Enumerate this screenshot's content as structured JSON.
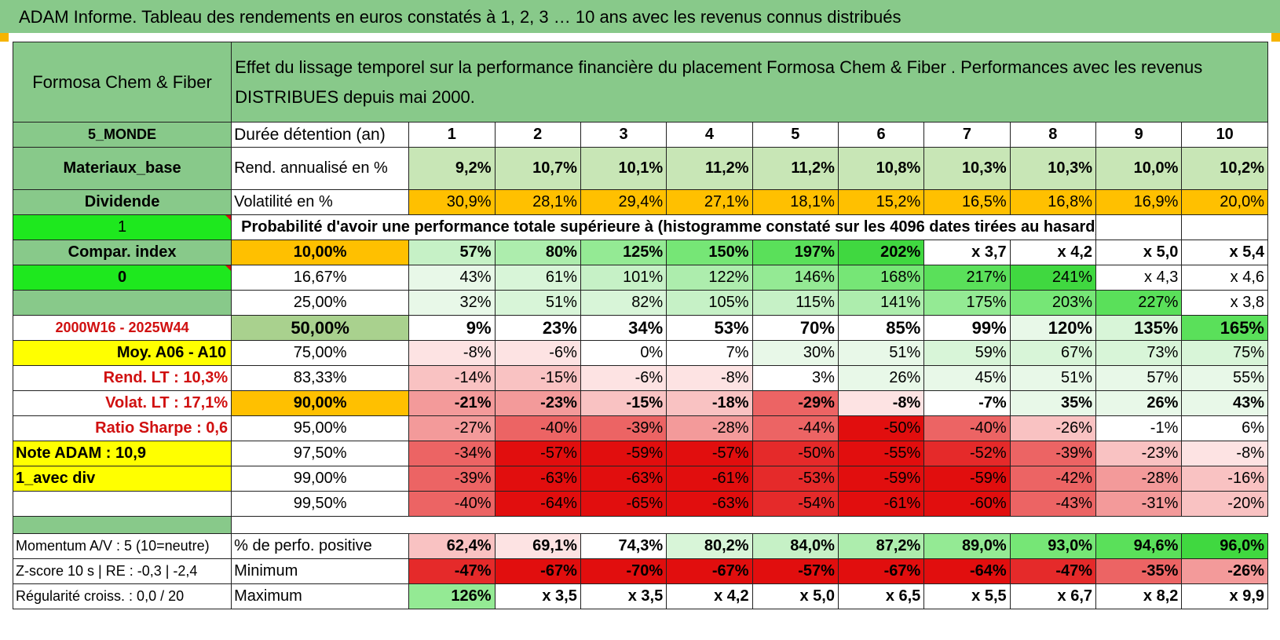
{
  "banner": "ADAM Informe. Tableau des rendements en euros constatés à 1, 2, 3 … 10 ans avec les revenus connus distribués",
  "header": {
    "fund": "Formosa Chem & Fiber",
    "description": "Effet du lissage temporel sur la performance financière du placement Formosa Chem & Fiber . Performances avec les revenus DISTRIBUES depuis mai 2000."
  },
  "left_labels": {
    "zone": "5_MONDE",
    "sector": "Materiaux_base",
    "type": "Dividende",
    "selector1": "1",
    "compar": "Compar. index",
    "selector2": "0",
    "period": "2000W16 - 2025W44",
    "moy": "Moy. A06 - A10",
    "rend_lt": "Rend. LT :    10,3%",
    "volat_lt": "Volat. LT :    17,1%",
    "sharpe": "Ratio Sharpe :    0,6",
    "note": "Note ADAM : 10,9",
    "avec_div": "1_avec div"
  },
  "rows_head": {
    "duree": "Durée détention (an)",
    "rend": "Rend. annualisé en %",
    "vol": "Volatilité en %",
    "prob": "Probabilité d'avoir une performance totale supérieure à (histogramme constaté sur les 4096 dates tirées au hasard)"
  },
  "years": [
    "1",
    "2",
    "3",
    "4",
    "5",
    "6",
    "7",
    "8",
    "9",
    "10"
  ],
  "rend": [
    "9,2%",
    "10,7%",
    "10,1%",
    "11,2%",
    "11,2%",
    "10,8%",
    "10,3%",
    "10,3%",
    "10,0%",
    "10,2%"
  ],
  "vol": [
    "30,9%",
    "28,1%",
    "29,4%",
    "27,1%",
    "18,1%",
    "15,2%",
    "16,5%",
    "16,8%",
    "16,9%",
    "20,0%"
  ],
  "prob_rows": [
    {
      "p": "10,00%",
      "v": [
        "57%",
        "80%",
        "125%",
        "150%",
        "197%",
        "202%",
        "x 3,7",
        "x 4,2",
        "x 5,0",
        "x 5,4"
      ]
    },
    {
      "p": "16,67%",
      "v": [
        "43%",
        "61%",
        "101%",
        "122%",
        "146%",
        "168%",
        "217%",
        "241%",
        "x 4,3",
        "x 4,6"
      ]
    },
    {
      "p": "25,00%",
      "v": [
        "32%",
        "51%",
        "82%",
        "105%",
        "115%",
        "141%",
        "175%",
        "203%",
        "227%",
        "x 3,8"
      ]
    },
    {
      "p": "50,00%",
      "v": [
        "9%",
        "23%",
        "34%",
        "53%",
        "70%",
        "85%",
        "99%",
        "120%",
        "135%",
        "165%"
      ]
    },
    {
      "p": "75,00%",
      "v": [
        "-8%",
        "-6%",
        "0%",
        "7%",
        "30%",
        "51%",
        "59%",
        "67%",
        "73%",
        "75%"
      ]
    },
    {
      "p": "83,33%",
      "v": [
        "-14%",
        "-15%",
        "-6%",
        "-8%",
        "3%",
        "26%",
        "45%",
        "51%",
        "57%",
        "55%"
      ]
    },
    {
      "p": "90,00%",
      "v": [
        "-21%",
        "-23%",
        "-15%",
        "-18%",
        "-29%",
        "-8%",
        "-7%",
        "35%",
        "26%",
        "43%"
      ]
    },
    {
      "p": "95,00%",
      "v": [
        "-27%",
        "-40%",
        "-39%",
        "-28%",
        "-44%",
        "-50%",
        "-40%",
        "-26%",
        "-1%",
        "6%"
      ]
    },
    {
      "p": "97,50%",
      "v": [
        "-34%",
        "-57%",
        "-59%",
        "-57%",
        "-50%",
        "-55%",
        "-52%",
        "-39%",
        "-23%",
        "-8%"
      ]
    },
    {
      "p": "99,00%",
      "v": [
        "-39%",
        "-63%",
        "-63%",
        "-61%",
        "-53%",
        "-59%",
        "-59%",
        "-42%",
        "-28%",
        "-16%"
      ]
    },
    {
      "p": "99,50%",
      "v": [
        "-40%",
        "-64%",
        "-65%",
        "-63%",
        "-54%",
        "-61%",
        "-60%",
        "-43%",
        "-31%",
        "-20%"
      ]
    }
  ],
  "footer": [
    {
      "left": "Momentum A/V : 5 (10=neutre)",
      "label": "% de perfo. positive",
      "v": [
        "62,4%",
        "69,1%",
        "74,3%",
        "80,2%",
        "84,0%",
        "87,2%",
        "89,0%",
        "93,0%",
        "94,6%",
        "96,0%"
      ]
    },
    {
      "left": "Z-score 10 s | RE : -0,3 | -2,4",
      "label": "Minimum",
      "v": [
        "-47%",
        "-67%",
        "-70%",
        "-67%",
        "-57%",
        "-67%",
        "-64%",
        "-47%",
        "-35%",
        "-26%"
      ]
    },
    {
      "left": "Régularité croiss. : 0,0 / 20",
      "label": "Maximum",
      "v": [
        "126%",
        "x 3,5",
        "x 3,5",
        "x 4,2",
        "x 5,0",
        "x 6,5",
        "x 5,5",
        "x 6,7",
        "x 8,2",
        "x 9,9"
      ]
    }
  ],
  "colors": {
    "header_green": "#88c98a",
    "bright_green": "#1ee81e",
    "yellow": "#ffff00",
    "orange": "#ffc000",
    "red_text": "#d01010"
  }
}
